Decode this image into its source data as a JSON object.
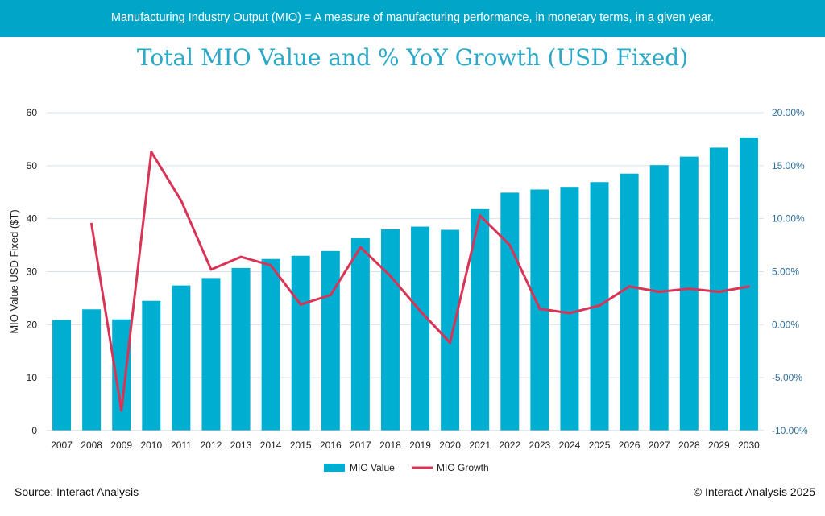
{
  "banner": {
    "text": "Manufacturing Industry Output (MIO) = A measure of manufacturing performance, in monetary terms, in a given year."
  },
  "footer": {
    "source": "Source: Interact Analysis",
    "copyright": "© Interact Analysis 2025"
  },
  "colors": {
    "banner": "#00a5c8",
    "title": "#2ba9c9",
    "bar": "#00aed1",
    "line": "#d93356",
    "right_axis": "#2f6e9a"
  },
  "chart_data": {
    "type": "bar",
    "title": "Total MIO Value and % YoY Growth (USD Fixed)",
    "ylabel": "MIO Value USD Fixed ($T)",
    "ylabel_right": "",
    "ylim": [
      0,
      60
    ],
    "yticks": [
      "0",
      "10",
      "20",
      "30",
      "40",
      "50",
      "60"
    ],
    "ylim_right": [
      -10,
      20
    ],
    "yticks_right": [
      "-10.00%",
      "-5.00%",
      "0.00%",
      "5.00%",
      "10.00%",
      "15.00%",
      "20.00%"
    ],
    "grid": true,
    "legend": "bottom-center",
    "categories": [
      "2007",
      "2008",
      "2009",
      "2010",
      "2011",
      "2012",
      "2013",
      "2014",
      "2015",
      "2016",
      "2017",
      "2018",
      "2019",
      "2020",
      "2021",
      "2022",
      "2023",
      "2024",
      "2025",
      "2026",
      "2027",
      "2028",
      "2029",
      "2030"
    ],
    "series": [
      {
        "name": "MIO Value",
        "type": "bar",
        "axis": "left",
        "values": [
          20.9,
          22.9,
          21.0,
          24.5,
          27.4,
          28.8,
          30.7,
          32.4,
          33.0,
          33.9,
          36.3,
          38.0,
          38.5,
          37.9,
          41.8,
          44.9,
          45.5,
          46.0,
          46.9,
          48.5,
          50.1,
          51.7,
          53.4,
          55.3
        ]
      },
      {
        "name": "MIO Growth",
        "type": "line",
        "axis": "right",
        "values": [
          null,
          9.5,
          -8.1,
          16.3,
          11.7,
          5.2,
          6.4,
          5.6,
          1.9,
          2.8,
          7.3,
          4.6,
          1.3,
          -1.7,
          10.3,
          7.5,
          1.5,
          1.1,
          1.8,
          3.6,
          3.1,
          3.4,
          3.1,
          3.6
        ]
      }
    ]
  }
}
